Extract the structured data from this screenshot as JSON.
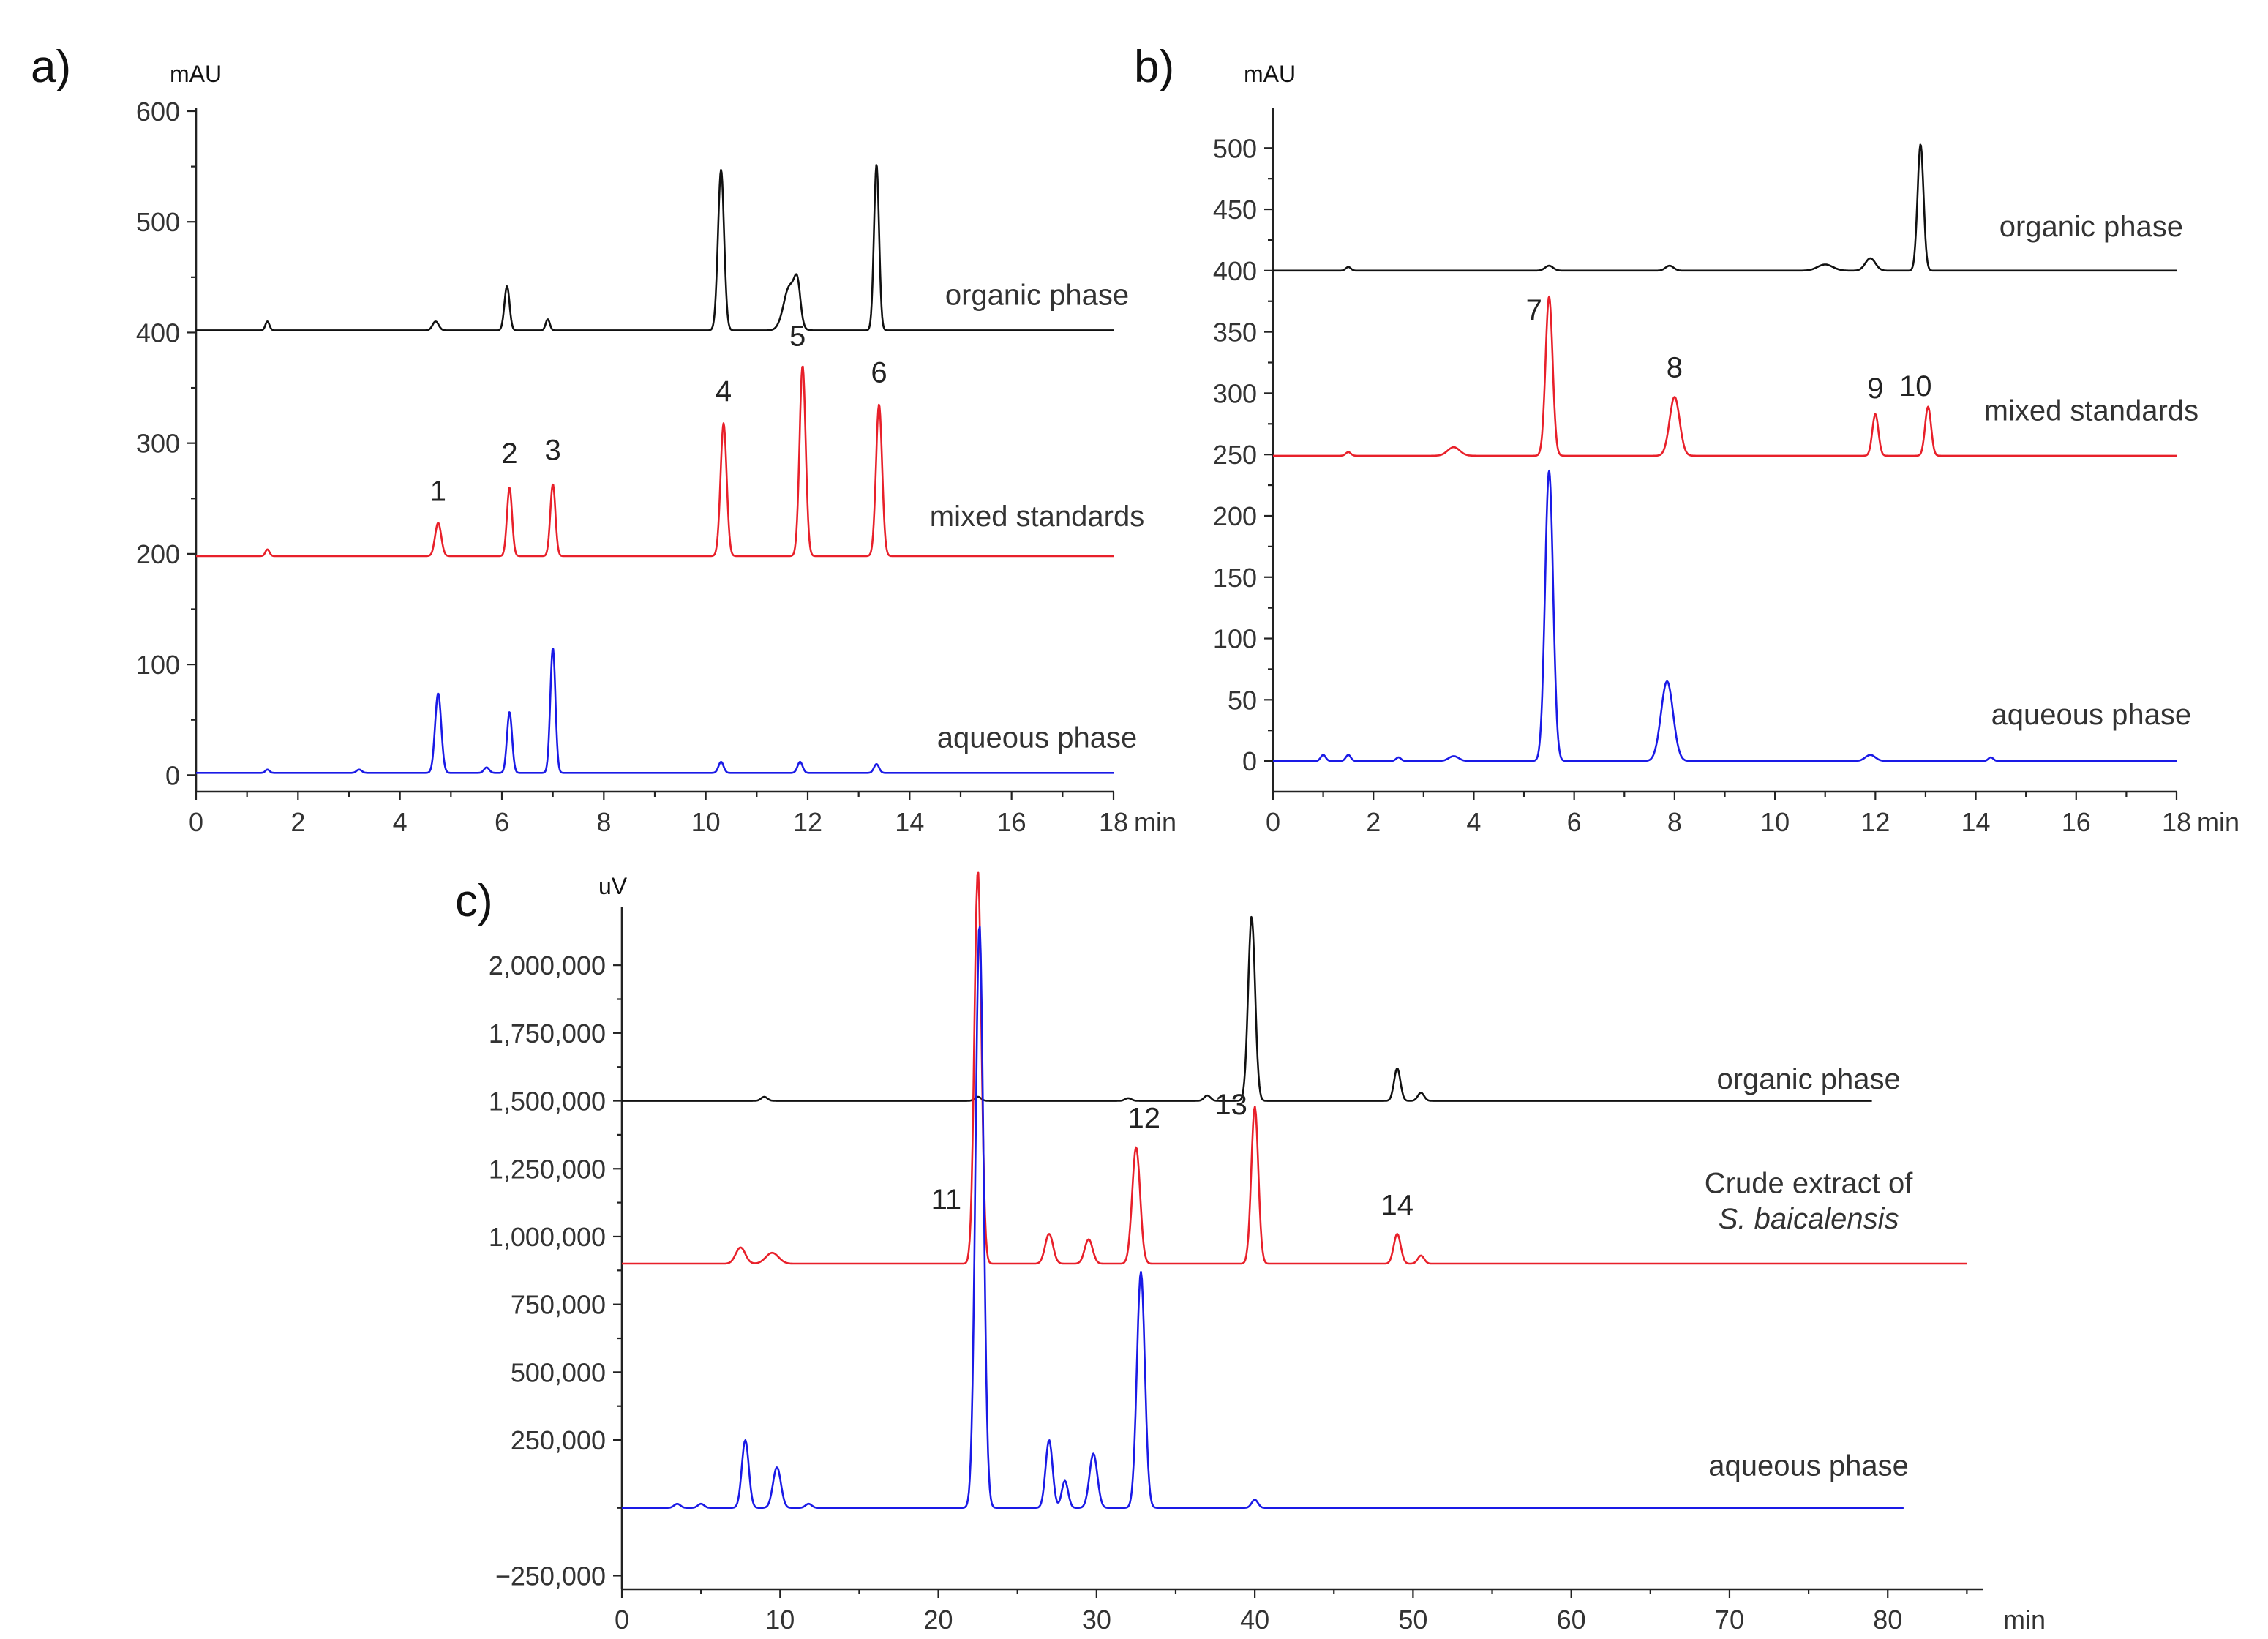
{
  "figure": {
    "panels": [
      {
        "id": "a",
        "label": "a)",
        "y_unit": "mAU",
        "x_unit": "min",
        "xlim": [
          0,
          18
        ],
        "ylim": [
          -15,
          600
        ],
        "x_ticks": [
          0,
          2,
          4,
          6,
          8,
          10,
          12,
          14,
          16,
          18
        ],
        "x_tick_labels": [
          "0",
          "2",
          "4",
          "6",
          "8",
          "10",
          "12",
          "14",
          "16",
          "18"
        ],
        "y_ticks": [
          0,
          100,
          200,
          300,
          400,
          500,
          600
        ],
        "y_tick_labels": [
          "0",
          "100",
          "200",
          "300",
          "400",
          "500",
          "600"
        ]
      },
      {
        "id": "b",
        "label": "b)",
        "y_unit": "mAU",
        "x_unit": "min",
        "xlim": [
          0,
          18
        ],
        "ylim": [
          -25,
          530
        ],
        "x_ticks": [
          0,
          2,
          4,
          6,
          8,
          10,
          12,
          14,
          16,
          18
        ],
        "x_tick_labels": [
          "0",
          "2",
          "4",
          "6",
          "8",
          "10",
          "12",
          "14",
          "16",
          "18"
        ],
        "y_ticks": [
          0,
          50,
          100,
          150,
          200,
          250,
          300,
          350,
          400,
          450,
          500
        ],
        "y_tick_labels": [
          "0",
          "50",
          "100",
          "150",
          "200",
          "250",
          "300",
          "350",
          "400",
          "450",
          "500"
        ]
      },
      {
        "id": "c",
        "label": "c)",
        "y_unit": "uV",
        "x_unit": "min",
        "xlim": [
          0,
          86
        ],
        "ylim": [
          -300000,
          2200000
        ],
        "x_ticks": [
          0,
          10,
          20,
          30,
          40,
          50,
          60,
          70,
          80
        ],
        "x_tick_labels": [
          "0",
          "10",
          "20",
          "30",
          "40",
          "50",
          "60",
          "70",
          "80"
        ],
        "y_ticks": [
          -250000,
          250000,
          500000,
          750000,
          1000000,
          1250000,
          1500000,
          1750000,
          2000000
        ],
        "y_tick_labels": [
          "−250,000",
          "250,000",
          "500,000",
          "750,000",
          "1,000,000",
          "1,250,000",
          "1,500,000",
          "1,750,000",
          "2,000,000"
        ]
      }
    ]
  },
  "chart_data": [
    {
      "panel": "a",
      "type": "line",
      "title": "",
      "xlabel": "min",
      "ylabel": "mAU",
      "xlim": [
        0,
        18
      ],
      "ylim": [
        -15,
        600
      ],
      "series": [
        {
          "name": "organic phase",
          "color": "#111111",
          "baseline": 402,
          "x_end": 18,
          "peaks": [
            [
              1.4,
              8,
              0.04
            ],
            [
              4.7,
              8,
              0.06
            ],
            [
              6.1,
              40,
              0.05
            ],
            [
              6.9,
              10,
              0.04
            ],
            [
              10.3,
              145,
              0.06
            ],
            [
              11.65,
              40,
              0.12
            ],
            [
              11.8,
              30,
              0.06
            ],
            [
              13.35,
              150,
              0.05
            ]
          ]
        },
        {
          "name": "mixed standards",
          "color": "#e8202a",
          "baseline": 198,
          "x_end": 18,
          "peaks": [
            [
              1.4,
              6,
              0.04
            ],
            [
              4.75,
              30,
              0.06
            ],
            [
              6.15,
              62,
              0.05
            ],
            [
              7.0,
              65,
              0.05
            ],
            [
              10.35,
              120,
              0.06
            ],
            [
              11.9,
              172,
              0.06
            ],
            [
              13.4,
              137,
              0.06
            ]
          ]
        },
        {
          "name": "aqueous phase",
          "color": "#1a1ae6",
          "baseline": 2,
          "x_end": 18,
          "peaks": [
            [
              1.4,
              3,
              0.04
            ],
            [
              3.2,
              3,
              0.05
            ],
            [
              4.75,
              72,
              0.06
            ],
            [
              5.7,
              5,
              0.05
            ],
            [
              6.15,
              55,
              0.05
            ],
            [
              7.0,
              113,
              0.05
            ],
            [
              10.3,
              10,
              0.05
            ],
            [
              11.85,
              10,
              0.05
            ],
            [
              13.35,
              8,
              0.05
            ]
          ]
        }
      ],
      "trace_labels": [
        {
          "text": "organic phase",
          "x": 16.5,
          "y": 425
        },
        {
          "text": "mixed standards",
          "x": 16.5,
          "y": 225
        },
        {
          "text": "aqueous phase",
          "x": 16.5,
          "y": 25
        }
      ],
      "peak_labels": [
        {
          "text": "1",
          "x": 4.75,
          "y": 248
        },
        {
          "text": "2",
          "x": 6.15,
          "y": 282
        },
        {
          "text": "3",
          "x": 7.0,
          "y": 285
        },
        {
          "text": "4",
          "x": 10.35,
          "y": 338
        },
        {
          "text": "5",
          "x": 11.8,
          "y": 388
        },
        {
          "text": "6",
          "x": 13.4,
          "y": 355
        }
      ]
    },
    {
      "panel": "b",
      "type": "line",
      "title": "",
      "xlabel": "min",
      "ylabel": "mAU",
      "xlim": [
        0,
        18
      ],
      "ylim": [
        -25,
        530
      ],
      "series": [
        {
          "name": "organic phase",
          "color": "#111111",
          "baseline": 400,
          "x_end": 18,
          "peaks": [
            [
              1.5,
              3,
              0.05
            ],
            [
              5.5,
              4,
              0.08
            ],
            [
              7.9,
              4,
              0.08
            ],
            [
              11.0,
              5,
              0.15
            ],
            [
              11.9,
              10,
              0.1
            ],
            [
              12.9,
              103,
              0.06
            ]
          ]
        },
        {
          "name": "mixed standards",
          "color": "#e8202a",
          "baseline": 249,
          "x_end": 18,
          "peaks": [
            [
              1.5,
              3,
              0.05
            ],
            [
              3.6,
              7,
              0.12
            ],
            [
              5.5,
              130,
              0.07
            ],
            [
              8.0,
              48,
              0.1
            ],
            [
              12.0,
              34,
              0.06
            ],
            [
              13.05,
              40,
              0.06
            ]
          ]
        },
        {
          "name": "aqueous phase",
          "color": "#1a1ae6",
          "baseline": 0,
          "x_end": 18,
          "peaks": [
            [
              1.0,
              5,
              0.05
            ],
            [
              1.5,
              5,
              0.05
            ],
            [
              2.5,
              3,
              0.05
            ],
            [
              3.6,
              4,
              0.1
            ],
            [
              5.5,
              237,
              0.08
            ],
            [
              7.85,
              65,
              0.12
            ],
            [
              11.9,
              5,
              0.1
            ],
            [
              14.3,
              3,
              0.05
            ]
          ]
        }
      ],
      "trace_labels": [
        {
          "text": "organic phase",
          "x": 16.3,
          "y": 428
        },
        {
          "text": "mixed standards",
          "x": 16.3,
          "y": 278
        },
        {
          "text": "aqueous phase",
          "x": 16.3,
          "y": 30
        }
      ],
      "peak_labels": [
        {
          "text": "7",
          "x": 5.2,
          "y": 360
        },
        {
          "text": "8",
          "x": 8.0,
          "y": 313
        },
        {
          "text": "9",
          "x": 12.0,
          "y": 296
        },
        {
          "text": "10",
          "x": 12.8,
          "y": 298
        }
      ]
    },
    {
      "panel": "c",
      "type": "line",
      "title": "",
      "xlabel": "min",
      "ylabel": "uV",
      "xlim": [
        0,
        86
      ],
      "ylim": [
        -300000,
        2200000
      ],
      "series": [
        {
          "name": "organic phase",
          "color": "#111111",
          "baseline": 1500000,
          "x_end": 79,
          "peaks": [
            [
              9.0,
              15000,
              0.2
            ],
            [
              22.5,
              15000,
              0.2
            ],
            [
              32.0,
              10000,
              0.2
            ],
            [
              37.0,
              20000,
              0.2
            ],
            [
              39.8,
              680000,
              0.22
            ],
            [
              49.0,
              120000,
              0.2
            ],
            [
              50.5,
              30000,
              0.2
            ]
          ]
        },
        {
          "name": "Crude extract of S. baicalensis",
          "color": "#e8202a",
          "baseline": 900000,
          "x_end": 85,
          "peaks": [
            [
              7.5,
              60000,
              0.3
            ],
            [
              9.5,
              40000,
              0.4
            ],
            [
              22.5,
              1450000,
              0.22
            ],
            [
              27.0,
              110000,
              0.25
            ],
            [
              29.5,
              90000,
              0.25
            ],
            [
              32.5,
              430000,
              0.25
            ],
            [
              40.0,
              580000,
              0.22
            ],
            [
              49.0,
              110000,
              0.22
            ],
            [
              50.5,
              30000,
              0.2
            ]
          ]
        },
        {
          "name": "aqueous phase",
          "color": "#1a1ae6",
          "baseline": 0,
          "x_end": 81,
          "peaks": [
            [
              3.5,
              15000,
              0.2
            ],
            [
              5.0,
              15000,
              0.2
            ],
            [
              7.8,
              250000,
              0.22
            ],
            [
              9.8,
              150000,
              0.25
            ],
            [
              11.8,
              15000,
              0.2
            ],
            [
              22.6,
              2150000,
              0.25
            ],
            [
              27.0,
              250000,
              0.22
            ],
            [
              28.0,
              100000,
              0.2
            ],
            [
              29.8,
              200000,
              0.25
            ],
            [
              32.8,
              870000,
              0.25
            ],
            [
              40.0,
              30000,
              0.2
            ]
          ]
        }
      ],
      "trace_labels": [
        {
          "text": "organic phase",
          "x": 75.0,
          "y": 1545000
        },
        {
          "text": "Crude extract of",
          "x": 75.0,
          "y": 1160000
        },
        {
          "text": "S. baicalensis",
          "x": 75.0,
          "y": 1030000,
          "italic": true
        },
        {
          "text": "aqueous phase",
          "x": 75.0,
          "y": 120000
        }
      ],
      "peak_labels": [
        {
          "text": "11",
          "x": 20.5,
          "y": 1100000
        },
        {
          "text": "12",
          "x": 33.0,
          "y": 1400000
        },
        {
          "text": "13",
          "x": 38.5,
          "y": 1450000
        },
        {
          "text": "14",
          "x": 49.0,
          "y": 1080000
        }
      ]
    }
  ]
}
